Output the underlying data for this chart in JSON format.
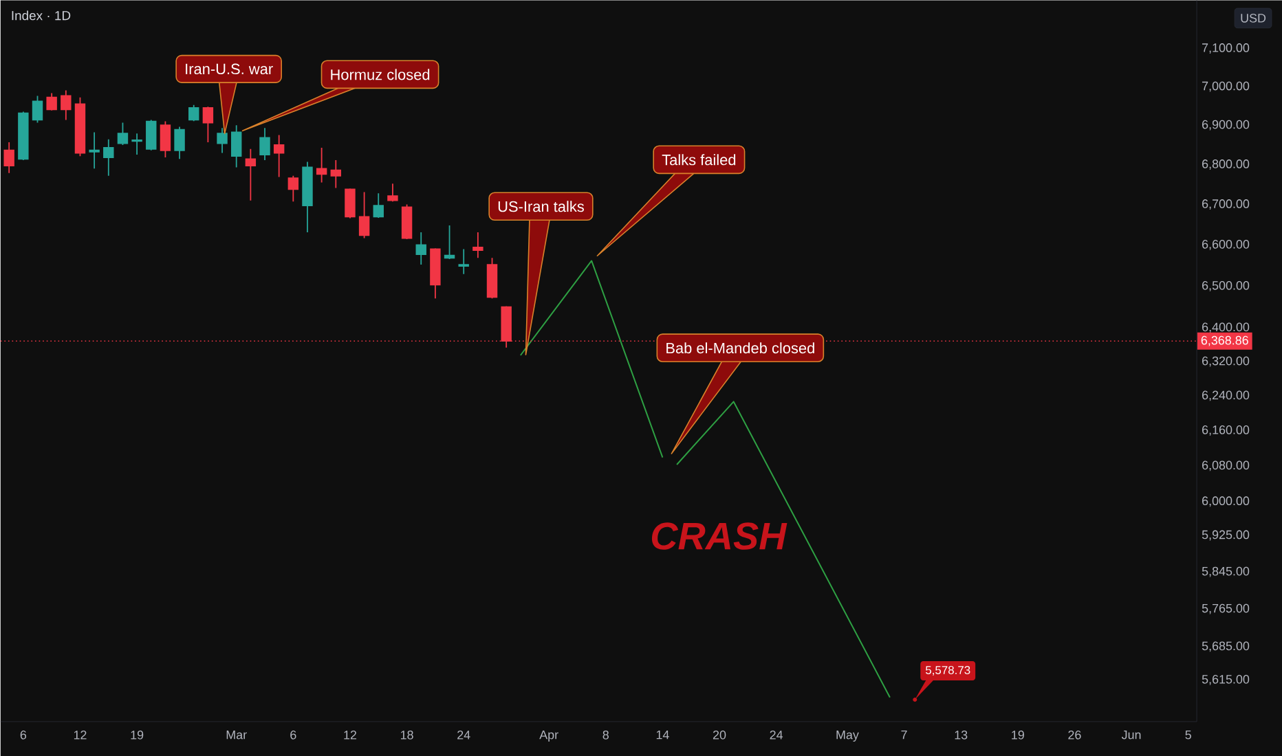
{
  "chart_data": {
    "type": "candlestick",
    "title": "Index · 1D",
    "ylabel": "USD",
    "log": "y",
    "categories": [
      null,
      "6",
      null,
      null,
      null,
      "12",
      null,
      null,
      null,
      "19",
      null,
      null,
      null,
      null,
      null,
      null,
      "Mar",
      null,
      null,
      null,
      "6",
      null,
      null,
      null,
      "12",
      null,
      null,
      null,
      "18",
      null,
      null,
      null,
      "24",
      null,
      null,
      null,
      null,
      null,
      "Apr",
      null,
      null,
      null,
      "8",
      null,
      null,
      null,
      "14",
      null,
      null,
      null,
      "20",
      null,
      null,
      null,
      "24",
      null,
      null,
      null,
      null,
      "May",
      null,
      null,
      null,
      "7",
      null,
      null,
      null,
      "13",
      null,
      null,
      null,
      "19",
      null,
      null,
      null,
      "26",
      null,
      null,
      null,
      "Jun",
      null,
      null,
      null,
      "5"
    ],
    "ohlc": [
      [
        6836,
        6857,
        6779,
        6797
      ],
      [
        6814,
        6935,
        6811,
        6931
      ],
      [
        6914,
        6976,
        6907,
        6962
      ],
      [
        6972,
        6983,
        6938,
        6941
      ],
      [
        6976,
        6990,
        6914,
        6941
      ],
      [
        6955,
        6972,
        6821,
        6829
      ],
      [
        6832,
        6882,
        6790,
        6836
      ],
      [
        6818,
        6864,
        6772,
        6843
      ],
      [
        6854,
        6907,
        6850,
        6879
      ],
      [
        6859,
        6879,
        6825,
        6862
      ],
      [
        6839,
        6914,
        6836,
        6910
      ],
      [
        6900,
        6910,
        6818,
        6836
      ],
      [
        6836,
        6896,
        6814,
        6889
      ],
      [
        6914,
        6952,
        6911,
        6945
      ],
      [
        6945,
        6948,
        6857,
        6907
      ],
      [
        6854,
        6893,
        6829,
        6879
      ],
      [
        6821,
        6900,
        6793,
        6882
      ],
      [
        6814,
        6839,
        6710,
        6797
      ],
      [
        6825,
        6893,
        6811,
        6868
      ],
      [
        6850,
        6875,
        6769,
        6829
      ],
      [
        6766,
        6772,
        6707,
        6738
      ],
      [
        6697,
        6807,
        6631,
        6793
      ],
      [
        6790,
        6843,
        6755,
        6776
      ],
      [
        6786,
        6811,
        6741,
        6772
      ],
      [
        6738,
        6740,
        6666,
        6669
      ],
      [
        6669,
        6731,
        6617,
        6624
      ],
      [
        6669,
        6728,
        6667,
        6697
      ],
      [
        6721,
        6752,
        6707,
        6710
      ],
      [
        6693,
        6700,
        6614,
        6617
      ],
      [
        6577,
        6631,
        6552,
        6600
      ],
      [
        6590,
        6592,
        6470,
        6503
      ],
      [
        6568,
        6648,
        6565,
        6574
      ],
      [
        6548,
        6590,
        6529,
        6552
      ],
      [
        6594,
        6631,
        6568,
        6587
      ],
      [
        6552,
        6568,
        6470,
        6473
      ],
      [
        6450,
        6452,
        6353,
        6368.86
      ],
      null,
      null,
      null,
      null,
      null,
      null,
      null,
      null,
      null,
      null,
      null,
      null,
      null,
      null,
      null,
      null,
      null,
      null,
      null,
      null,
      null,
      null,
      null,
      null,
      null,
      null,
      null,
      null,
      null,
      null,
      null,
      null,
      null,
      null,
      null,
      null,
      null,
      null,
      null,
      null,
      null,
      null,
      null,
      null,
      null,
      null,
      null,
      null
    ],
    "colors": [
      "#f23645",
      "#26a69a",
      "#26a69a",
      "#f23645",
      "#f23645",
      "#f23645",
      "#26a69a",
      "#26a69a",
      "#26a69a",
      "#26a69a",
      "#26a69a",
      "#f23645",
      "#26a69a",
      "#26a69a",
      "#f23645",
      "#26a69a",
      "#26a69a",
      "#f23645",
      "#26a69a",
      "#f23645",
      "#f23645",
      "#26a69a",
      "#f23645",
      "#f23645",
      "#f23645",
      "#f23645",
      "#26a69a",
      "#f23645",
      "#f23645",
      "#26a69a",
      "#f23645",
      "#26a69a",
      "#26a69a",
      "#f23645",
      "#f23645",
      "#f23645",
      null,
      null,
      null,
      null,
      null,
      null,
      null,
      null,
      null,
      null,
      null,
      null,
      null,
      null,
      null,
      null,
      null,
      null,
      null,
      null,
      null,
      null,
      null,
      null,
      null,
      null,
      null,
      null,
      null,
      null,
      null,
      null,
      null,
      null,
      null,
      null,
      null,
      null,
      null,
      null,
      null,
      null,
      null,
      null,
      null,
      null,
      null,
      null
    ],
    "series": [
      {
        "type": "line",
        "color": "#2ea043",
        "values": [
          null,
          null,
          null,
          null,
          null,
          null,
          null,
          null,
          null,
          null,
          null,
          null,
          null,
          null,
          null,
          null,
          null,
          null,
          null,
          null,
          null,
          null,
          null,
          null,
          null,
          null,
          null,
          null,
          null,
          null,
          null,
          null,
          null,
          null,
          null,
          null,
          6335,
          null,
          null,
          null,
          null,
          6561,
          null,
          null,
          null,
          null,
          6099,
          null,
          null,
          null,
          null,
          null,
          null,
          null,
          null,
          null,
          null,
          null,
          null,
          null,
          null,
          null,
          null,
          null,
          null,
          null,
          null,
          null,
          null,
          null,
          null,
          null,
          null,
          null,
          null,
          null,
          null,
          null,
          null,
          null,
          null,
          null,
          null,
          null
        ]
      },
      {
        "type": "line",
        "color": "#2ea043",
        "values": [
          null,
          null,
          null,
          null,
          null,
          null,
          null,
          null,
          null,
          null,
          null,
          null,
          null,
          null,
          null,
          null,
          null,
          null,
          null,
          null,
          null,
          null,
          null,
          null,
          null,
          null,
          null,
          null,
          null,
          null,
          null,
          null,
          null,
          null,
          null,
          null,
          null,
          null,
          null,
          null,
          null,
          null,
          null,
          null,
          null,
          null,
          null,
          6083,
          null,
          null,
          null,
          6227,
          null,
          null,
          null,
          null,
          null,
          null,
          null,
          null,
          null,
          null,
          5579,
          null,
          null,
          null,
          null,
          null,
          null,
          null,
          null,
          null,
          null,
          null,
          null,
          null,
          null,
          null,
          null,
          null,
          null,
          null,
          null,
          null
        ]
      }
    ],
    "ylim": [
      5529,
      7228
    ],
    "yticks": [
      {
        "value": 5615,
        "label": "5,615.00"
      },
      {
        "value": 5685,
        "label": "5,685.00"
      },
      {
        "value": 5765,
        "label": "5,765.00"
      },
      {
        "value": 5845,
        "label": "5,845.00"
      },
      {
        "value": 5925,
        "label": "5,925.00"
      },
      {
        "value": 6000,
        "label": "6,000.00"
      },
      {
        "value": 6080,
        "label": "6,080.00"
      },
      {
        "value": 6160,
        "label": "6,160.00"
      },
      {
        "value": 6240,
        "label": "6,240.00"
      },
      {
        "value": 6320,
        "label": "6,320.00"
      },
      {
        "value": 6400,
        "label": "6,400.00"
      },
      {
        "value": 6500,
        "label": "6,500.00"
      },
      {
        "value": 6600,
        "label": "6,600.00"
      },
      {
        "value": 6700,
        "label": "6,700.00"
      },
      {
        "value": 6800,
        "label": "6,800.00"
      },
      {
        "value": 6900,
        "label": "6,900.00"
      },
      {
        "value": 7000,
        "label": "7,000.00"
      },
      {
        "value": 7100,
        "label": "7,100.00"
      }
    ],
    "ref_lines": [
      {
        "axis": "y",
        "value": 6368.86,
        "label": "6,368.86",
        "color": "#f23645",
        "line_style": "dotted"
      }
    ],
    "annotations": [
      "Iran-U.S. war",
      "Hormuz closed",
      "US-Iran talks",
      "Talks failed",
      "Bab el-Mandeb closed",
      "CRASH",
      "5,578.73"
    ]
  }
}
